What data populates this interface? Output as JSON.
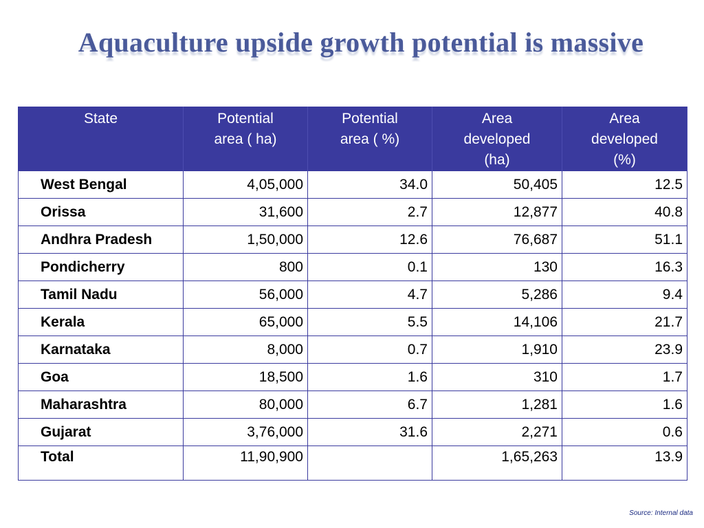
{
  "title": "Aquaculture upside growth potential is massive",
  "table": {
    "headers": [
      [
        "State"
      ],
      [
        "Potential",
        "area ( ha)"
      ],
      [
        "Potential",
        "area ( %)"
      ],
      [
        "Area",
        "developed",
        "(ha)"
      ],
      [
        "Area",
        "developed",
        "(%)"
      ]
    ],
    "rows": [
      [
        "West Bengal",
        "4,05,000",
        "34.0",
        "50,405",
        "12.5"
      ],
      [
        "Orissa",
        "31,600",
        "2.7",
        "12,877",
        "40.8"
      ],
      [
        "Andhra Pradesh",
        "1,50,000",
        "12.6",
        "76,687",
        "51.1"
      ],
      [
        "Pondicherry",
        "800",
        "0.1",
        "130",
        "16.3"
      ],
      [
        "Tamil Nadu",
        "56,000",
        "4.7",
        "5,286",
        "9.4"
      ],
      [
        "Kerala",
        "65,000",
        "5.5",
        "14,106",
        "21.7"
      ],
      [
        "Karnataka",
        "8,000",
        "0.7",
        "1,910",
        "23.9"
      ],
      [
        "Goa",
        "18,500",
        "1.6",
        "310",
        "1.7"
      ],
      [
        "Maharashtra",
        "80,000",
        "6.7",
        "1,281",
        "1.6"
      ],
      [
        "Gujarat",
        "3,76,000",
        "31.6",
        "2,271",
        "0.6"
      ],
      [
        "Total",
        "11,90,900",
        "",
        "1,65,263",
        "13.9"
      ]
    ]
  },
  "source": "Source: Internal data",
  "colors": {
    "header_bg": "#3a3a9e",
    "title": "#4a5a9a",
    "border": "#3a3a9e"
  }
}
